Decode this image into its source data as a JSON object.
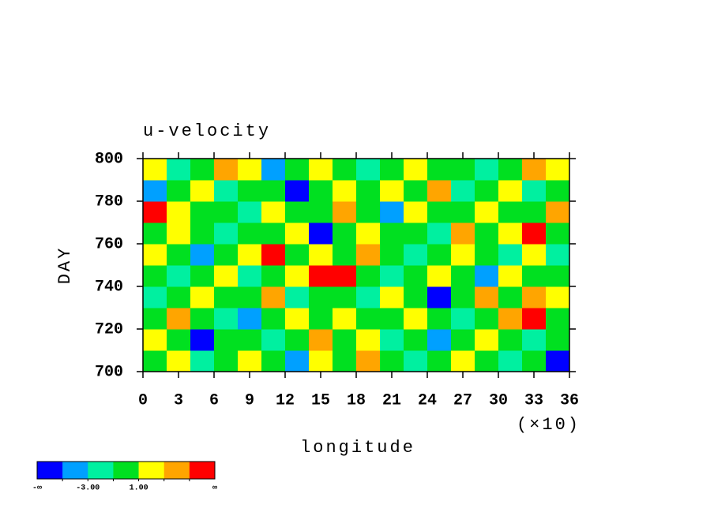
{
  "chart_data": {
    "type": "contour",
    "title": "u-velocity",
    "x_label": "longitude",
    "y_label": "DAY",
    "x_multiplier": "(×10)",
    "xlim": [
      0,
      360
    ],
    "xticks": [
      0,
      {
        "value": 30,
        "label": "3"
      },
      {
        "value": 60,
        "label": "6"
      },
      {
        "value": 90,
        "label": "9"
      },
      {
        "value": 120,
        "label": "12"
      },
      {
        "value": 150,
        "label": "15"
      },
      {
        "value": 180,
        "label": "18"
      },
      {
        "value": 210,
        "label": "21"
      },
      {
        "value": 240,
        "label": "24"
      },
      {
        "value": 270,
        "label": "27"
      },
      {
        "value": 300,
        "label": "30"
      },
      {
        "value": 330,
        "label": "33"
      },
      {
        "value": 360,
        "label": "36"
      }
    ],
    "ylim": [
      700,
      800
    ],
    "yticks": [
      700,
      720,
      740,
      760,
      780,
      800
    ],
    "x": [
      10,
      30,
      50,
      70,
      90,
      110,
      130,
      150,
      170,
      190,
      210,
      230,
      250,
      270,
      290,
      310,
      330,
      350
    ],
    "y": [
      705,
      715,
      725,
      735,
      745,
      755,
      765,
      775,
      785,
      795
    ],
    "z": [
      [
        0,
        2,
        -2,
        0,
        2,
        0,
        -4,
        2,
        0,
        4,
        0,
        -2,
        0,
        2,
        0,
        -2,
        0,
        -6
      ],
      [
        2,
        0,
        -6,
        0,
        0,
        -2,
        0,
        4,
        0,
        2,
        -2,
        0,
        -4,
        0,
        2,
        0,
        -2,
        0
      ],
      [
        0,
        4,
        0,
        -2,
        -4,
        0,
        2,
        0,
        2,
        0,
        0,
        2,
        0,
        -2,
        0,
        4,
        6,
        0
      ],
      [
        -2,
        0,
        2,
        0,
        0,
        4,
        -2,
        0,
        0,
        -2,
        2,
        0,
        -6,
        0,
        4,
        0,
        4,
        2
      ],
      [
        0,
        -2,
        0,
        2,
        -2,
        0,
        2,
        6,
        6,
        0,
        -2,
        0,
        2,
        0,
        -4,
        2,
        0,
        0
      ],
      [
        2,
        0,
        -4,
        0,
        2,
        6,
        0,
        2,
        0,
        4,
        0,
        -2,
        0,
        2,
        0,
        -2,
        2,
        -2
      ],
      [
        0,
        2,
        0,
        -2,
        0,
        0,
        2,
        -6,
        0,
        2,
        0,
        0,
        -2,
        4,
        0,
        2,
        6,
        0
      ],
      [
        6,
        2,
        0,
        0,
        -2,
        2,
        0,
        0,
        4,
        0,
        -4,
        2,
        0,
        0,
        2,
        0,
        0,
        4
      ],
      [
        -4,
        0,
        2,
        -2,
        0,
        0,
        -6,
        0,
        2,
        0,
        2,
        0,
        4,
        -2,
        0,
        2,
        -2,
        0
      ],
      [
        2,
        -2,
        0,
        4,
        2,
        -4,
        0,
        2,
        0,
        -2,
        0,
        2,
        0,
        0,
        -2,
        0,
        4,
        2
      ]
    ],
    "levels": [
      -5,
      -3,
      -1,
      1,
      3,
      5
    ],
    "colors": [
      "#0000ff",
      "#00a0ff",
      "#00f0a0",
      "#00e020",
      "#ffff00",
      "#ffa500",
      "#ff0000"
    ],
    "colorbar_ticks": [
      {
        "value": -3,
        "label": "-3.00"
      },
      {
        "value": 1,
        "label": "1.00"
      }
    ],
    "colorbar_end_labels": [
      "-∞",
      "∞"
    ]
  }
}
